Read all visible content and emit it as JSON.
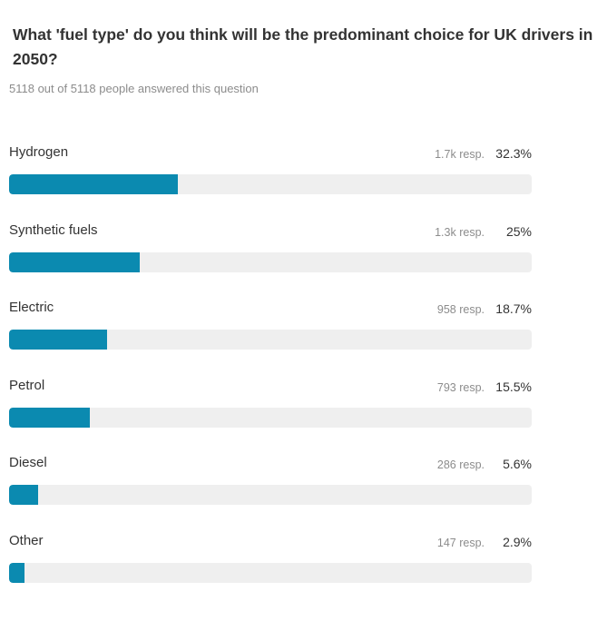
{
  "question": "What 'fuel type' do you think will be the predominant choice for UK drivers in 2050?",
  "answered_text": "5118 out of 5118 people answered this question",
  "colors": {
    "bar_fill": "#0b8ab0",
    "bar_track": "#efefef"
  },
  "chart_data": {
    "type": "bar",
    "orientation": "horizontal",
    "categories": [
      "Hydrogen",
      "Synthetic fuels",
      "Electric",
      "Petrol",
      "Diesel",
      "Other"
    ],
    "values": [
      32.3,
      25,
      18.7,
      15.5,
      5.6,
      2.9
    ],
    "units": "%",
    "xlim": [
      0,
      100
    ],
    "responses": [
      "1.7k resp.",
      "1.3k resp.",
      "958 resp.",
      "793 resp.",
      "286 resp.",
      "147 resp."
    ],
    "value_labels": [
      "32.3%",
      "25%",
      "18.7%",
      "15.5%",
      "5.6%",
      "2.9%"
    ]
  }
}
